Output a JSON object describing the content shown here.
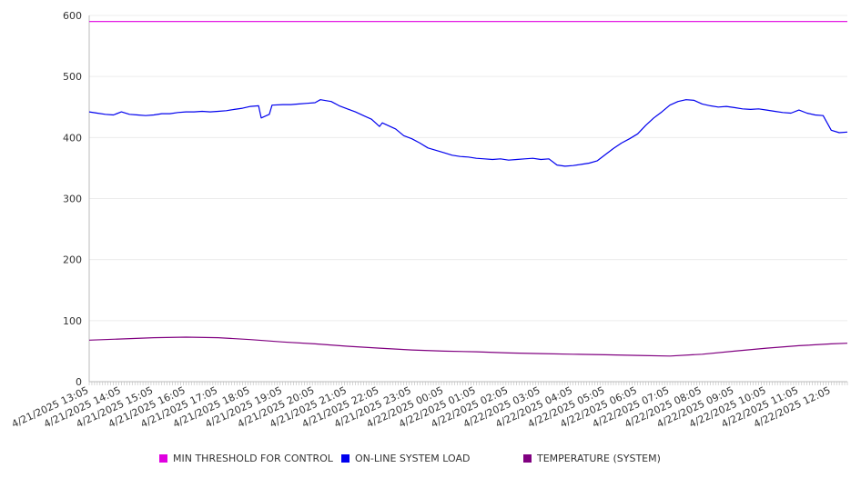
{
  "chart_data": {
    "type": "line",
    "ylim": [
      0,
      600
    ],
    "yticks": [
      0,
      100,
      200,
      300,
      400,
      500,
      600
    ],
    "grid": true,
    "legend_position": "bottom",
    "x_start": "4/21/2025 13:05",
    "x_end": "4/22/2025 12:35",
    "xtick_labels": [
      "4/21/2025 13:05",
      "4/21/2025 14:05",
      "4/21/2025 15:05",
      "4/21/2025 16:05",
      "4/21/2025 17:05",
      "4/21/2025 18:05",
      "4/21/2025 19:05",
      "4/21/2025 20:05",
      "4/21/2025 21:05",
      "4/21/2025 22:05",
      "4/21/2025 23:05",
      "4/22/2025 00:05",
      "4/22/2025 01:05",
      "4/22/2025 02:05",
      "4/22/2025 03:05",
      "4/22/2025 04:05",
      "4/22/2025 05:05",
      "4/22/2025 06:05",
      "4/22/2025 07:05",
      "4/22/2025 08:05",
      "4/22/2025 09:05",
      "4/22/2025 10:05",
      "4/22/2025 11:05",
      "4/22/2025 12:05"
    ],
    "series": [
      {
        "name": "MIN THRESHOLD FOR CONTROL",
        "color": "#e000e0",
        "points": [
          [
            "4/21/2025 13:05",
            590
          ],
          [
            "4/22/2025 12:35",
            590
          ]
        ]
      },
      {
        "name": "ON-LINE SYSTEM LOAD",
        "color": "#0000ee",
        "points": [
          [
            "4/21/2025 13:05",
            442
          ],
          [
            "4/21/2025 13:20",
            440
          ],
          [
            "4/21/2025 13:35",
            438
          ],
          [
            "4/21/2025 13:50",
            437
          ],
          [
            "4/21/2025 14:05",
            442
          ],
          [
            "4/21/2025 14:20",
            438
          ],
          [
            "4/21/2025 14:35",
            437
          ],
          [
            "4/21/2025 14:50",
            436
          ],
          [
            "4/21/2025 15:05",
            437
          ],
          [
            "4/21/2025 15:20",
            439
          ],
          [
            "4/21/2025 15:35",
            439
          ],
          [
            "4/21/2025 15:50",
            441
          ],
          [
            "4/21/2025 16:05",
            442
          ],
          [
            "4/21/2025 16:20",
            442
          ],
          [
            "4/21/2025 16:35",
            443
          ],
          [
            "4/21/2025 16:50",
            442
          ],
          [
            "4/21/2025 17:05",
            443
          ],
          [
            "4/21/2025 17:20",
            444
          ],
          [
            "4/21/2025 17:35",
            446
          ],
          [
            "4/21/2025 17:50",
            448
          ],
          [
            "4/21/2025 18:05",
            451
          ],
          [
            "4/21/2025 18:20",
            452
          ],
          [
            "4/21/2025 18:25",
            432
          ],
          [
            "4/21/2025 18:40",
            438
          ],
          [
            "4/21/2025 18:45",
            453
          ],
          [
            "4/21/2025 19:05",
            454
          ],
          [
            "4/21/2025 19:20",
            454
          ],
          [
            "4/21/2025 19:35",
            455
          ],
          [
            "4/21/2025 19:50",
            456
          ],
          [
            "4/21/2025 20:05",
            457
          ],
          [
            "4/21/2025 20:15",
            462
          ],
          [
            "4/21/2025 20:35",
            459
          ],
          [
            "4/21/2025 20:50",
            452
          ],
          [
            "4/21/2025 21:05",
            447
          ],
          [
            "4/21/2025 21:20",
            442
          ],
          [
            "4/21/2025 21:35",
            436
          ],
          [
            "4/21/2025 21:50",
            430
          ],
          [
            "4/21/2025 22:05",
            418
          ],
          [
            "4/21/2025 22:10",
            424
          ],
          [
            "4/21/2025 22:35",
            414
          ],
          [
            "4/21/2025 22:50",
            403
          ],
          [
            "4/21/2025 23:05",
            398
          ],
          [
            "4/21/2025 23:20",
            391
          ],
          [
            "4/21/2025 23:35",
            383
          ],
          [
            "4/21/2025 23:50",
            379
          ],
          [
            "4/22/2025 00:05",
            375
          ],
          [
            "4/22/2025 00:20",
            371
          ],
          [
            "4/22/2025 00:35",
            369
          ],
          [
            "4/22/2025 00:50",
            368
          ],
          [
            "4/22/2025 01:05",
            366
          ],
          [
            "4/22/2025 01:20",
            365
          ],
          [
            "4/22/2025 01:35",
            364
          ],
          [
            "4/22/2025 01:50",
            365
          ],
          [
            "4/22/2025 02:05",
            363
          ],
          [
            "4/22/2025 02:20",
            364
          ],
          [
            "4/22/2025 02:35",
            365
          ],
          [
            "4/22/2025 02:50",
            366
          ],
          [
            "4/22/2025 03:05",
            364
          ],
          [
            "4/22/2025 03:20",
            365
          ],
          [
            "4/22/2025 03:35",
            355
          ],
          [
            "4/22/2025 03:50",
            353
          ],
          [
            "4/22/2025 04:05",
            354
          ],
          [
            "4/22/2025 04:20",
            356
          ],
          [
            "4/22/2025 04:35",
            358
          ],
          [
            "4/22/2025 04:50",
            362
          ],
          [
            "4/22/2025 05:05",
            372
          ],
          [
            "4/22/2025 05:20",
            382
          ],
          [
            "4/22/2025 05:35",
            391
          ],
          [
            "4/22/2025 05:50",
            398
          ],
          [
            "4/22/2025 06:05",
            406
          ],
          [
            "4/22/2025 06:20",
            420
          ],
          [
            "4/22/2025 06:35",
            432
          ],
          [
            "4/22/2025 06:50",
            442
          ],
          [
            "4/22/2025 07:05",
            453
          ],
          [
            "4/22/2025 07:20",
            459
          ],
          [
            "4/22/2025 07:35",
            462
          ],
          [
            "4/22/2025 07:50",
            461
          ],
          [
            "4/22/2025 08:05",
            455
          ],
          [
            "4/22/2025 08:20",
            452
          ],
          [
            "4/22/2025 08:35",
            450
          ],
          [
            "4/22/2025 08:50",
            451
          ],
          [
            "4/22/2025 09:05",
            449
          ],
          [
            "4/22/2025 09:20",
            447
          ],
          [
            "4/22/2025 09:35",
            446
          ],
          [
            "4/22/2025 09:50",
            447
          ],
          [
            "4/22/2025 10:05",
            445
          ],
          [
            "4/22/2025 10:20",
            443
          ],
          [
            "4/22/2025 10:35",
            441
          ],
          [
            "4/22/2025 10:50",
            440
          ],
          [
            "4/22/2025 11:05",
            445
          ],
          [
            "4/22/2025 11:20",
            440
          ],
          [
            "4/22/2025 11:35",
            437
          ],
          [
            "4/22/2025 11:50",
            436
          ],
          [
            "4/22/2025 12:05",
            412
          ],
          [
            "4/22/2025 12:20",
            408
          ],
          [
            "4/22/2025 12:35",
            409
          ]
        ]
      },
      {
        "name": "TEMPERATURE (SYSTEM)",
        "color": "#800080",
        "points": [
          [
            "4/21/2025 13:05",
            68
          ],
          [
            "4/21/2025 14:05",
            70
          ],
          [
            "4/21/2025 15:05",
            72
          ],
          [
            "4/21/2025 16:05",
            73
          ],
          [
            "4/21/2025 17:05",
            72
          ],
          [
            "4/21/2025 18:05",
            69
          ],
          [
            "4/21/2025 19:05",
            65
          ],
          [
            "4/21/2025 20:05",
            62
          ],
          [
            "4/21/2025 21:05",
            58
          ],
          [
            "4/21/2025 22:05",
            55
          ],
          [
            "4/21/2025 23:05",
            52
          ],
          [
            "4/22/2025 00:05",
            50
          ],
          [
            "4/22/2025 01:05",
            49
          ],
          [
            "4/22/2025 02:05",
            47
          ],
          [
            "4/22/2025 03:05",
            46
          ],
          [
            "4/22/2025 04:05",
            45
          ],
          [
            "4/22/2025 05:05",
            44
          ],
          [
            "4/22/2025 06:05",
            43
          ],
          [
            "4/22/2025 07:05",
            42
          ],
          [
            "4/22/2025 08:05",
            45
          ],
          [
            "4/22/2025 09:05",
            50
          ],
          [
            "4/22/2025 10:05",
            55
          ],
          [
            "4/22/2025 11:05",
            59
          ],
          [
            "4/22/2025 12:05",
            62
          ],
          [
            "4/22/2025 12:35",
            63
          ]
        ]
      }
    ]
  }
}
